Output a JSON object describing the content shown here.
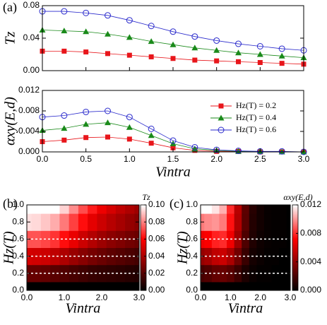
{
  "chart_data": [
    {
      "type": "line",
      "panel_label": "(a)",
      "ylabel": "Tz",
      "x": [
        0,
        0.25,
        0.5,
        0.75,
        1.0,
        1.25,
        1.5,
        1.75,
        2.0,
        2.25,
        2.5,
        2.75,
        3.0
      ],
      "xlim": [
        0,
        3
      ],
      "ylim": [
        0,
        0.08
      ],
      "yticks": [
        {
          "value": 0,
          "label": "0.00"
        },
        {
          "value": 0.04,
          "label": "0.04"
        },
        {
          "value": 0.08,
          "label": "0.08"
        }
      ],
      "series": [
        {
          "name": "Hz(T) = 0.2",
          "color": "#e8161b",
          "marker": "square",
          "values": [
            0.024,
            0.024,
            0.023,
            0.021,
            0.019,
            0.017,
            0.015,
            0.013,
            0.012,
            0.011,
            0.01,
            0.009,
            0.008
          ]
        },
        {
          "name": "Hz(T) = 0.4",
          "color": "#1a8a1a",
          "marker": "triangle",
          "values": [
            0.05,
            0.049,
            0.048,
            0.045,
            0.041,
            0.036,
            0.032,
            0.028,
            0.025,
            0.022,
            0.02,
            0.018,
            0.016
          ]
        },
        {
          "name": "Hz(T) = 0.6",
          "color": "#2a2acc",
          "marker": "circle",
          "values": [
            0.073,
            0.073,
            0.071,
            0.068,
            0.062,
            0.055,
            0.048,
            0.042,
            0.037,
            0.033,
            0.03,
            0.027,
            0.025
          ]
        }
      ]
    },
    {
      "type": "line",
      "ylabel": "αxy(E,d)",
      "xlabel": "Vintra",
      "legend": "upper right",
      "x": [
        0,
        0.25,
        0.5,
        0.75,
        1.0,
        1.25,
        1.5,
        1.75,
        2.0,
        2.25,
        2.5,
        2.75,
        3.0
      ],
      "xlim": [
        0,
        3
      ],
      "ylim": [
        0,
        0.012
      ],
      "xticks": [
        {
          "value": 0,
          "label": "0.0"
        },
        0.5,
        {
          "value": 1,
          "label": "1.0"
        },
        1.5,
        {
          "value": 2,
          "label": "2.0"
        },
        2.5,
        {
          "value": 3,
          "label": "3.0"
        }
      ],
      "yticks": [
        {
          "value": 0,
          "label": "0.000"
        },
        0.004,
        0.008,
        0.012
      ],
      "series": [
        {
          "name": "Hz(T) = 0.2",
          "color": "#e8161b",
          "marker": "square",
          "values": [
            0.002,
            0.0023,
            0.0028,
            0.0029,
            0.0025,
            0.0017,
            0.0008,
            0.0003,
            0.0001,
            0.0001,
            0,
            0,
            0
          ]
        },
        {
          "name": "Hz(T) = 0.4",
          "color": "#1a8a1a",
          "marker": "triangle",
          "values": [
            0.0042,
            0.0046,
            0.0054,
            0.0057,
            0.0048,
            0.0032,
            0.0016,
            0.0006,
            0.0003,
            0.0001,
            0.0001,
            0,
            0
          ]
        },
        {
          "name": "Hz(T) = 0.6",
          "color": "#2a2acc",
          "marker": "circle",
          "values": [
            0.0068,
            0.0071,
            0.0078,
            0.008,
            0.0068,
            0.0045,
            0.0022,
            0.0009,
            0.0004,
            0.0002,
            0.0001,
            0.0001,
            0
          ]
        }
      ]
    },
    {
      "type": "heatmap",
      "panel_label": "(b)",
      "xlabel": "Vintra",
      "ylabel": "Hz(T)",
      "colorbar_label": "Tz",
      "x": [
        0,
        0.25,
        0.5,
        0.75,
        1.0,
        1.25,
        1.5,
        1.75,
        2.0,
        2.25,
        2.5,
        2.75,
        3.0
      ],
      "y": [
        0,
        0.2,
        0.4,
        0.6,
        0.8,
        1.0
      ],
      "xlim": [
        0,
        3
      ],
      "ylim": [
        0,
        1
      ],
      "xticks": [
        {
          "value": 0,
          "label": "0.0"
        },
        {
          "value": 1,
          "label": "1.0"
        },
        {
          "value": 2,
          "label": "2.0"
        },
        {
          "value": 3,
          "label": "3.0"
        }
      ],
      "yticks": [
        {
          "value": 0,
          "label": "0.0"
        },
        0.2,
        0.4,
        0.6,
        0.8,
        {
          "value": 1,
          "label": "1.0"
        }
      ],
      "hlines": [
        0.2,
        0.4,
        0.6
      ],
      "clim": [
        0,
        0.1
      ],
      "cticks": [
        {
          "value": 0,
          "label": "0.00"
        },
        0.02,
        0.04,
        0.06,
        0.08,
        {
          "value": 0.1,
          "label": "0.10"
        }
      ],
      "values": [
        [
          0,
          0,
          0,
          0,
          0,
          0,
          0,
          0,
          0,
          0,
          0,
          0,
          0
        ],
        [
          0.024,
          0.024,
          0.023,
          0.021,
          0.019,
          0.017,
          0.015,
          0.013,
          0.012,
          0.011,
          0.01,
          0.009,
          0.008
        ],
        [
          0.05,
          0.049,
          0.048,
          0.045,
          0.041,
          0.036,
          0.032,
          0.028,
          0.025,
          0.022,
          0.02,
          0.018,
          0.016
        ],
        [
          0.073,
          0.073,
          0.071,
          0.068,
          0.062,
          0.055,
          0.048,
          0.042,
          0.037,
          0.033,
          0.03,
          0.027,
          0.025
        ],
        [
          0.095,
          0.094,
          0.091,
          0.087,
          0.079,
          0.07,
          0.062,
          0.054,
          0.048,
          0.043,
          0.039,
          0.035,
          0.032
        ],
        [
          0.115,
          0.113,
          0.108,
          0.102,
          0.093,
          0.082,
          0.072,
          0.064,
          0.056,
          0.05,
          0.045,
          0.041,
          0.037
        ]
      ]
    },
    {
      "type": "heatmap",
      "panel_label": "(c)",
      "xlabel": "Vintra",
      "ylabel": "Hz(T)",
      "colorbar_label": "αxy(E,d)",
      "x": [
        0,
        0.25,
        0.5,
        0.75,
        1.0,
        1.25,
        1.5,
        1.75,
        2.0,
        2.25,
        2.5,
        2.75,
        3.0
      ],
      "y": [
        0,
        0.2,
        0.4,
        0.6,
        0.8,
        1.0
      ],
      "xlim": [
        0,
        3
      ],
      "ylim": [
        0,
        1
      ],
      "xticks": [
        {
          "value": 0,
          "label": "0.0"
        },
        {
          "value": 1,
          "label": "1.0"
        },
        {
          "value": 2,
          "label": "2.0"
        },
        {
          "value": 3,
          "label": "3.0"
        }
      ],
      "yticks": [
        {
          "value": 0,
          "label": "0.0"
        },
        0.2,
        0.4,
        0.6,
        0.8,
        {
          "value": 1,
          "label": "1.0"
        }
      ],
      "hlines": [
        0.2,
        0.4,
        0.6
      ],
      "clim": [
        0,
        0.012
      ],
      "cticks": [
        {
          "value": 0,
          "label": "0.000"
        },
        0.004,
        0.008,
        0.012
      ],
      "values": [
        [
          0,
          0,
          0,
          0,
          0,
          0,
          0,
          0,
          0,
          0,
          0,
          0,
          0
        ],
        [
          0.002,
          0.0023,
          0.0028,
          0.0029,
          0.0025,
          0.0017,
          0.0008,
          0.0003,
          0.0001,
          0.0001,
          0,
          0,
          0
        ],
        [
          0.0042,
          0.0046,
          0.0054,
          0.0057,
          0.0048,
          0.0032,
          0.0016,
          0.0006,
          0.0003,
          0.0001,
          0.0001,
          0,
          0
        ],
        [
          0.0068,
          0.0071,
          0.0078,
          0.008,
          0.0068,
          0.0045,
          0.0022,
          0.0009,
          0.0004,
          0.0002,
          0.0001,
          0.0001,
          0
        ],
        [
          0.0095,
          0.0098,
          0.01,
          0.0095,
          0.0075,
          0.005,
          0.0025,
          0.001,
          0.0005,
          0.0002,
          0.0001,
          0.0001,
          0
        ],
        [
          0.012,
          0.012,
          0.0115,
          0.0105,
          0.008,
          0.0052,
          0.0026,
          0.0011,
          0.0005,
          0.0002,
          0.0001,
          0.0001,
          0
        ]
      ]
    }
  ]
}
